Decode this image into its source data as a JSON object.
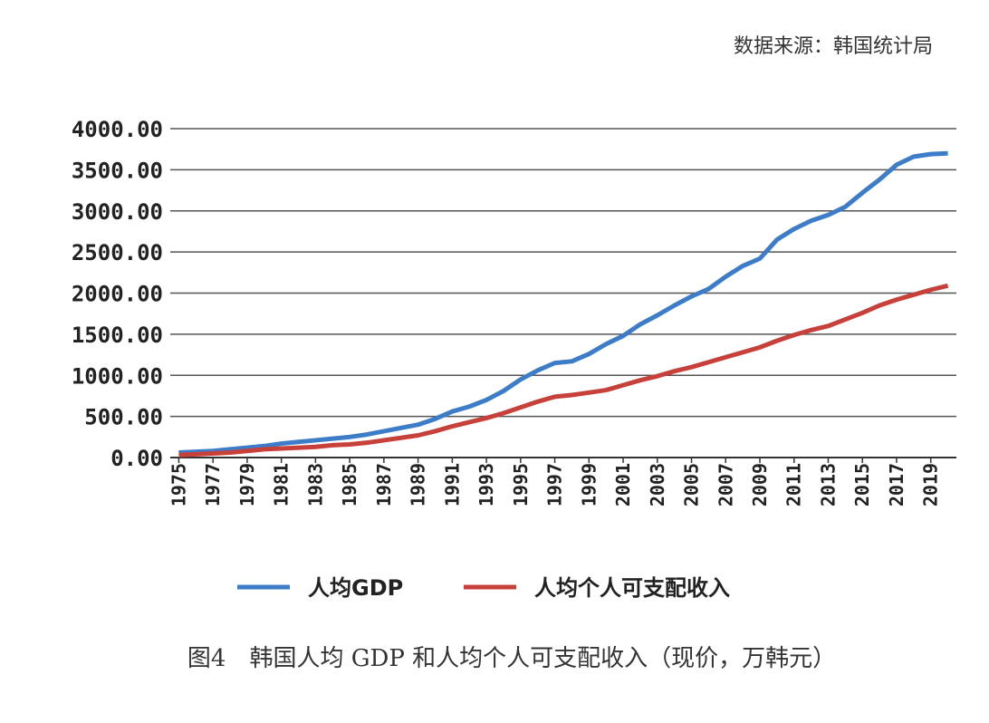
{
  "source": "数据来源：韩国统计局",
  "caption": "图4　韩国人均 GDP 和人均个人可支配收入（现价，万韩元）",
  "chart_data": {
    "type": "line",
    "x": [
      1975,
      1976,
      1977,
      1978,
      1979,
      1980,
      1981,
      1982,
      1983,
      1984,
      1985,
      1986,
      1987,
      1988,
      1989,
      1990,
      1991,
      1992,
      1993,
      1994,
      1995,
      1996,
      1997,
      1998,
      1999,
      2000,
      2001,
      2002,
      2003,
      2004,
      2005,
      2006,
      2007,
      2008,
      2009,
      2010,
      2011,
      2012,
      2013,
      2014,
      2015,
      2016,
      2017,
      2018,
      2019,
      2020
    ],
    "xlim": [
      1974.5,
      2020.5
    ],
    "xticks": [
      1975,
      1977,
      1979,
      1981,
      1983,
      1985,
      1987,
      1989,
      1991,
      1993,
      1995,
      1997,
      1999,
      2001,
      2003,
      2005,
      2007,
      2009,
      2011,
      2013,
      2015,
      2017,
      2019
    ],
    "ylim": [
      0,
      4000
    ],
    "yticks": [
      {
        "value": 0,
        "label": "0.00"
      },
      {
        "value": 500,
        "label": "500.00"
      },
      {
        "value": 1000,
        "label": "1000.00"
      },
      {
        "value": 1500,
        "label": "1500.00"
      },
      {
        "value": 2000,
        "label": "2000.00"
      },
      {
        "value": 2500,
        "label": "2500.00"
      },
      {
        "value": 3000,
        "label": "3000.00"
      },
      {
        "value": 3500,
        "label": "3500.00"
      },
      {
        "value": 4000,
        "label": "4000.00"
      }
    ],
    "grid": true,
    "legend": "bottom",
    "series": [
      {
        "name": "人均GDP",
        "color": "#3d7cc9",
        "values": [
          60,
          70,
          80,
          100,
          120,
          140,
          170,
          190,
          210,
          230,
          250,
          280,
          320,
          360,
          400,
          470,
          560,
          620,
          700,
          810,
          950,
          1060,
          1150,
          1170,
          1260,
          1380,
          1480,
          1620,
          1730,
          1850,
          1960,
          2050,
          2200,
          2330,
          2420,
          2650,
          2780,
          2880,
          2950,
          3050,
          3220,
          3380,
          3560,
          3660,
          3690,
          3700
        ]
      },
      {
        "name": "人均个人可支配收入",
        "color": "#c8403a",
        "values": [
          30,
          40,
          50,
          60,
          80,
          100,
          110,
          120,
          130,
          150,
          160,
          180,
          210,
          240,
          270,
          320,
          380,
          430,
          480,
          540,
          610,
          680,
          740,
          760,
          790,
          820,
          880,
          940,
          990,
          1050,
          1100,
          1160,
          1220,
          1280,
          1340,
          1420,
          1490,
          1550,
          1600,
          1680,
          1760,
          1850,
          1920,
          1980,
          2040,
          2090
        ]
      }
    ]
  }
}
